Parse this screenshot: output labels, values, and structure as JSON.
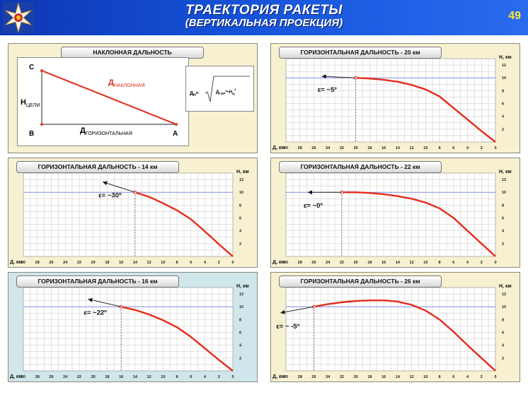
{
  "header": {
    "title_line1": "ТРАЕКТОРИЯ  РАКЕТЫ",
    "title_line2": "(ВЕРТИКАЛЬНАЯ ПРОЕКЦИЯ)",
    "page_number": "49",
    "colors": {
      "band_start": "#0d37b5",
      "band_end": "#2a6bf0",
      "page_number": "#ffe83a"
    }
  },
  "slant_panel": {
    "title": "НАКЛОННАЯ ДАЛЬНОСТЬ",
    "points": {
      "c": "С",
      "b": "В",
      "a": "А"
    },
    "slant_label_main": "Д",
    "slant_label_sub": "НАКЛОННАЯ",
    "height_label_main": "Н",
    "height_label_sub": "ЦЕЛИ",
    "horizontal_label_main": "Д",
    "horizontal_label_sub": "ГОРИЗОНТАЛЬНАЯ",
    "formula_left": "Д",
    "formula_left_sub": "Н",
    "formula_eq": "=",
    "formula_under": "Д",
    "formula_under_sub": "ГОР",
    "formula_plus": "²+Н",
    "formula_h_sub": "Ц",
    "formula_exp": "²",
    "colors": {
      "hypotenuse": "#e03a2a",
      "points": "#e03a2a"
    }
  },
  "axis": {
    "x_label": "Д, км",
    "y_label": "Н, км",
    "x_ticks": [
      "30",
      "28",
      "26",
      "24",
      "22",
      "20",
      "18",
      "16",
      "14",
      "12",
      "10",
      "8",
      "6",
      "4",
      "2",
      "0"
    ],
    "y_ticks": [
      "2",
      "4",
      "6",
      "8",
      "10",
      "12"
    ]
  },
  "colors": {
    "trajectory": "#e52b1b",
    "target_line": "#7f8ee0",
    "grid": "#c7c7c7",
    "panel_beige": "#f7f1d2",
    "panel_blue": "#cfe6ea"
  },
  "chart_data": [
    {
      "type": "line",
      "title": "ГОРИЗОНТАЛЬНАЯ ДАЛЬНОСТЬ  - 20 км",
      "angle_label": "ε= ~5º",
      "target_height": 10,
      "xlim": [
        30,
        0
      ],
      "ylim": [
        0,
        13
      ],
      "x": [
        20,
        18,
        16,
        14,
        12,
        10,
        8,
        6,
        4,
        2,
        0
      ],
      "y": [
        10,
        9.9,
        9.7,
        9.4,
        8.9,
        8.2,
        7.1,
        5.3,
        3.5,
        1.7,
        0
      ]
    },
    {
      "type": "line",
      "title": "ГОРИЗОНТАЛЬНАЯ ДАЛЬНОСТЬ  - 14 км",
      "angle_label": "ε= ~30º",
      "target_height": 10,
      "xlim": [
        30,
        0
      ],
      "ylim": [
        0,
        13
      ],
      "x": [
        14,
        12,
        10,
        8,
        6,
        4,
        2,
        0
      ],
      "y": [
        10,
        9.3,
        8.3,
        7.2,
        5.8,
        3.9,
        1.9,
        0
      ]
    },
    {
      "type": "line",
      "title": "ГОРИЗОНТАЛЬНАЯ ДАЛЬНОСТЬ  - 22 км",
      "angle_label": "ε= ~0º",
      "target_height": 10,
      "xlim": [
        30,
        0
      ],
      "ylim": [
        0,
        13
      ],
      "x": [
        22,
        20,
        18,
        16,
        14,
        12,
        10,
        8,
        6,
        4,
        2,
        0
      ],
      "y": [
        10,
        10,
        9.9,
        9.7,
        9.4,
        9,
        8.4,
        7.5,
        6,
        4,
        2,
        0
      ]
    },
    {
      "type": "line",
      "title": "ГОРИЗОНТАЛЬНАЯ ДАЛЬНОСТЬ  - 16 км",
      "angle_label": "ε= ~22º",
      "target_height": 10,
      "xlim": [
        30,
        0
      ],
      "ylim": [
        0,
        13
      ],
      "x": [
        16,
        14,
        12,
        10,
        8,
        6,
        4,
        2,
        0
      ],
      "y": [
        10,
        9.5,
        8.8,
        7.9,
        6.8,
        5.3,
        3.5,
        1.7,
        0
      ]
    },
    {
      "type": "line",
      "title": "ГОРИЗОНТАЛЬНАЯ ДАЛЬНОСТЬ  - 26 км",
      "angle_label": "ε= ~ -5º",
      "target_height": 10,
      "xlim": [
        30,
        0
      ],
      "ylim": [
        0,
        13
      ],
      "x": [
        26,
        24,
        22,
        20,
        18,
        16,
        14,
        12,
        10,
        8,
        6,
        4,
        2,
        0
      ],
      "y": [
        10,
        10.4,
        10.7,
        10.9,
        11,
        11,
        10.8,
        10.3,
        9.4,
        8,
        6.1,
        4,
        2,
        0
      ]
    }
  ]
}
